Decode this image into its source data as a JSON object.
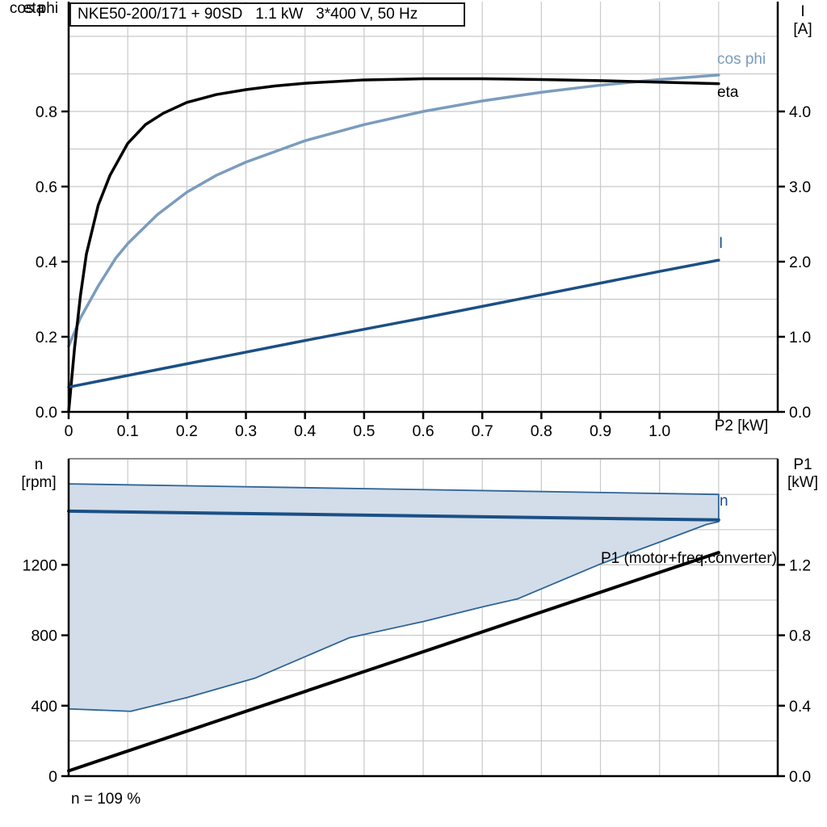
{
  "title": {
    "text": "NKE50-200/171 + 90SD   1.1 kW   3*400 V, 50 Hz"
  },
  "colors": {
    "eta": "#000000",
    "cos_phi": "#7B9CBD",
    "current": "#1B4F85",
    "band_fill": "#D2DDE9",
    "band_edge": "#2E6496",
    "p1": "#000000",
    "grid": "#C9C9C9",
    "frame_gray": "#8A8A8A",
    "axis": "#000000"
  },
  "chart_data": [
    {
      "type": "line",
      "title": "NKE50-200/171 + 90SD   1.1 kW   3*400 V, 50 Hz",
      "xlabel": "P2 [kW]",
      "x_range": [
        0,
        1.2
      ],
      "x_grid_step": 0.1,
      "x_tick_marks": [
        0,
        0.1,
        0.2,
        0.3,
        0.4,
        0.5,
        0.6,
        0.7,
        0.8,
        0.9,
        1.0,
        1.1
      ],
      "x_tick_values": [
        0,
        0.1,
        0.2,
        0.3,
        0.4,
        0.5,
        0.6,
        0.7,
        0.8,
        0.9,
        1.0
      ],
      "x_tick_labels": [
        "0",
        "0.1",
        "0.2",
        "0.3",
        "0.4",
        "0.5",
        "0.6",
        "0.7",
        "0.8",
        "0.9",
        "1.0"
      ],
      "left_axis": {
        "title_lines": [
          "cos phi",
          "eta"
        ],
        "range": [
          0,
          1.09
        ],
        "ticks": [
          0,
          0.2,
          0.4,
          0.6,
          0.8
        ],
        "tick_labels": [
          "0.0",
          "0.2",
          "0.4",
          "0.6",
          "0.8"
        ],
        "grid_step": 0.1
      },
      "right_axis": {
        "title_lines": [
          "I",
          "[A]"
        ],
        "range": [
          0,
          5.45
        ],
        "ticks": [
          0,
          1,
          2,
          3,
          4
        ],
        "tick_labels": [
          "0.0",
          "1.0",
          "2.0",
          "3.0",
          "4.0"
        ],
        "grid_step": 0.5
      },
      "legend_position": "curve-end-labels",
      "grid": true,
      "series": [
        {
          "name": "eta",
          "label": "eta",
          "axis": "left",
          "width": 3.5,
          "x": [
            0,
            0.01,
            0.02,
            0.03,
            0.05,
            0.07,
            0.1,
            0.13,
            0.16,
            0.2,
            0.25,
            0.3,
            0.35,
            0.4,
            0.5,
            0.6,
            0.7,
            0.8,
            0.9,
            1.0,
            1.1
          ],
          "y": [
            0,
            0.17,
            0.31,
            0.42,
            0.55,
            0.63,
            0.715,
            0.765,
            0.795,
            0.824,
            0.845,
            0.858,
            0.868,
            0.875,
            0.884,
            0.887,
            0.887,
            0.885,
            0.882,
            0.878,
            0.874
          ]
        },
        {
          "name": "cos phi",
          "label": "cos phi",
          "axis": "left",
          "width": 3.5,
          "x": [
            0,
            0.02,
            0.05,
            0.08,
            0.1,
            0.15,
            0.2,
            0.25,
            0.3,
            0.4,
            0.5,
            0.6,
            0.7,
            0.8,
            0.9,
            1.0,
            1.1
          ],
          "y": [
            0.175,
            0.25,
            0.335,
            0.41,
            0.448,
            0.525,
            0.585,
            0.63,
            0.665,
            0.722,
            0.765,
            0.8,
            0.828,
            0.851,
            0.87,
            0.885,
            0.897
          ]
        },
        {
          "name": "I",
          "label": "I",
          "axis": "right",
          "width": 3.5,
          "x": [
            0,
            0.2,
            0.4,
            0.6,
            0.8,
            1.0,
            1.1
          ],
          "y": [
            0.33,
            0.64,
            0.95,
            1.25,
            1.56,
            1.87,
            2.02
          ]
        }
      ]
    },
    {
      "type": "line+area",
      "xlabel": "",
      "x_range": [
        0,
        1.2
      ],
      "x_grid_step": 0.1,
      "left_axis": {
        "title_lines": [
          "n",
          "[rpm]"
        ],
        "range": [
          0,
          1800
        ],
        "ticks": [
          0,
          400,
          800,
          1200
        ],
        "tick_labels": [
          "0",
          "400",
          "800",
          "1200"
        ],
        "grid_step": 200
      },
      "right_axis": {
        "title_lines": [
          "P1",
          "[kW]"
        ],
        "range": [
          0,
          1.8
        ],
        "ticks": [
          0,
          0.4,
          0.8,
          1.2
        ],
        "tick_labels": [
          "0.0",
          "0.4",
          "0.8",
          "1.2"
        ],
        "grid_step": 0.2
      },
      "band": {
        "name": "speed-control-range",
        "upper": {
          "x": [
            0,
            1.1
          ],
          "y": [
            1660,
            1600
          ]
        },
        "lower": {
          "x": [
            0,
            0.105,
            0.2,
            0.315,
            0.475,
            0.6,
            0.7,
            0.76,
            0.9,
            1.0,
            1.08,
            1.1
          ],
          "y": [
            382,
            368,
            446,
            556,
            786,
            878,
            961,
            1007,
            1205,
            1329,
            1430,
            1445
          ]
        }
      },
      "series": [
        {
          "name": "n",
          "label": "n",
          "axis": "left",
          "width": 4,
          "x": [
            0,
            1.1
          ],
          "y": [
            1505,
            1455
          ]
        },
        {
          "name": "P1",
          "label": "P1 (motor+freq.converter)",
          "axis": "right",
          "width": 4,
          "x": [
            0,
            1.1
          ],
          "y": [
            0.03,
            1.27
          ]
        }
      ],
      "footnote": "n = 109 %",
      "grid": true
    }
  ]
}
